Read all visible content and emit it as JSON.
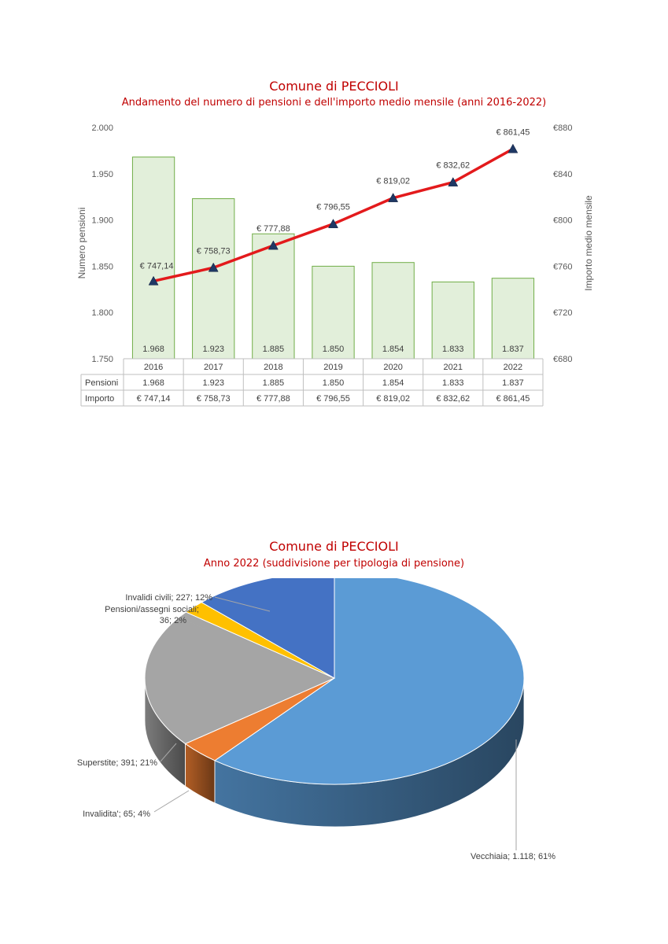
{
  "chart_data": [
    {
      "type": "bar",
      "combo": "bar + line (secondary axis)",
      "title": "Comune di PECCIOLI",
      "subtitle": "Andamento del numero di pensioni e dell'importo medio mensile (anni 2016-2022)",
      "categories": [
        "2016",
        "2017",
        "2018",
        "2019",
        "2020",
        "2021",
        "2022"
      ],
      "series": [
        {
          "name": "Pensioni",
          "type": "bar",
          "axis": "primary",
          "values": [
            1968,
            1923,
            1885,
            1850,
            1854,
            1833,
            1837
          ],
          "labels": [
            "1.968",
            "1.923",
            "1.885",
            "1.850",
            "1.854",
            "1.833",
            "1.837"
          ],
          "color": "#e2efda",
          "border": "#70ad47"
        },
        {
          "name": "Importo",
          "type": "line",
          "axis": "secondary",
          "values": [
            747.14,
            758.73,
            777.88,
            796.55,
            819.02,
            832.62,
            861.45
          ],
          "labels": [
            "€ 747,14",
            "€ 758,73",
            "€ 777,88",
            "€ 796,55",
            "€ 819,02",
            "€ 832,62",
            "€ 861,45"
          ],
          "color": "#e31a1c",
          "marker_color": "#1f3864"
        }
      ],
      "ylabel": "Numero pensioni",
      "ylabel_secondary": "Importo medio mensile",
      "ylim": [
        1750,
        2000
      ],
      "y_ticks": [
        "1.750",
        "1.800",
        "1.850",
        "1.900",
        "1.950",
        "2.000"
      ],
      "y2lim": [
        680,
        880
      ],
      "y2_ticks": [
        "€680",
        "€720",
        "€760",
        "€800",
        "€840",
        "€880"
      ],
      "grid": false,
      "data_table": true
    },
    {
      "type": "pie",
      "style": "3d",
      "title": "Comune di PECCIOLI",
      "subtitle": "Anno 2022 (suddivisione per tipologia di pensione)",
      "slices": [
        {
          "name": "Vecchiaia",
          "value": 1118,
          "label": "Vecchiaia; 1.118; 61%",
          "color": "#5b9bd5"
        },
        {
          "name": "Invalidita'",
          "value": 65,
          "label": "Invalidita'; 65; 4%",
          "color": "#ed7d31"
        },
        {
          "name": "Superstite",
          "value": 391,
          "label": "Superstite; 391; 21%",
          "color": "#a5a5a5"
        },
        {
          "name": "Pensioni/assegni sociali",
          "value": 36,
          "label_lines": [
            "Pensioni/assegni sociali;",
            "36; 2%"
          ],
          "color": "#ffc000"
        },
        {
          "name": "Invalidi civili",
          "value": 227,
          "label": "Invalidi civili; 227; 12%",
          "color": "#4472c4"
        }
      ]
    }
  ]
}
